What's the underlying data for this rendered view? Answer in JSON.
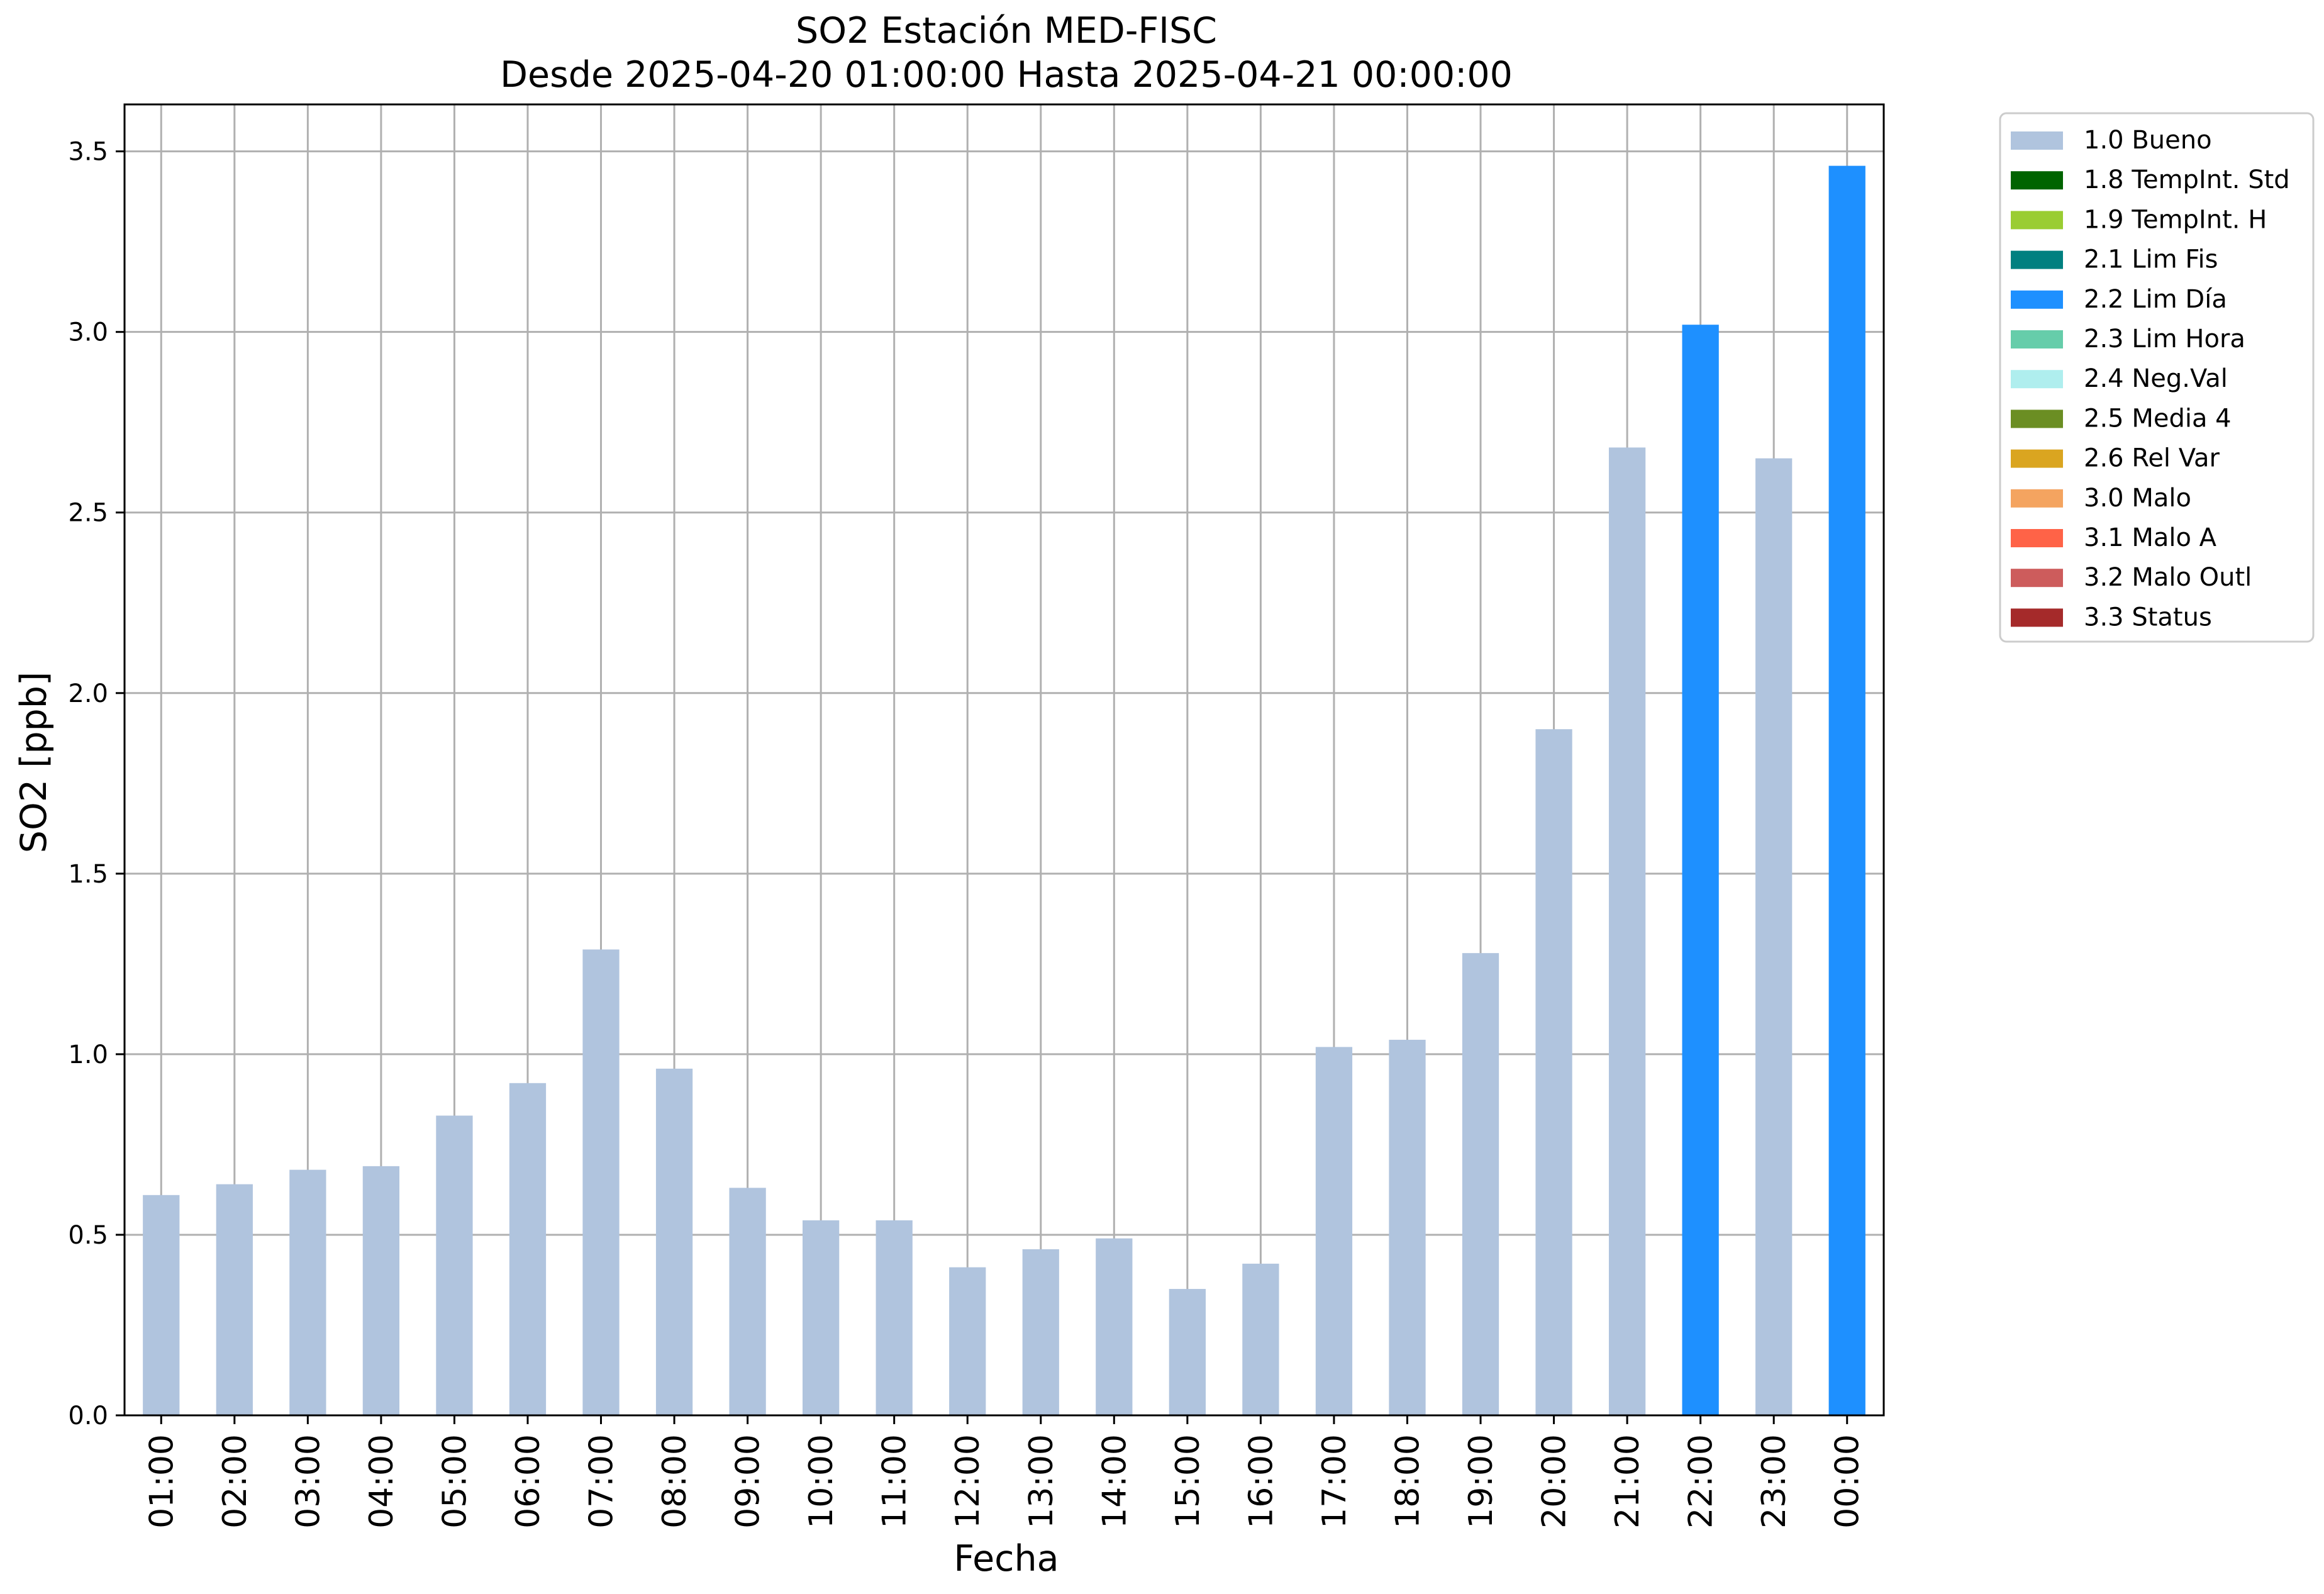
{
  "chart_data": {
    "type": "bar",
    "title": "SO2 Estación MED-FISC",
    "subtitle": "Desde 2025-04-20 01:00:00 Hasta 2025-04-21 00:00:00",
    "xlabel": "Fecha",
    "ylabel": "SO2 [ppb]",
    "ylim": [
      0,
      3.63
    ],
    "yticks": [
      "0.0",
      "0.5",
      "1.0",
      "1.5",
      "2.0",
      "2.5",
      "3.0",
      "3.5"
    ],
    "grid": true,
    "legend_position": "outside-top-right",
    "categories": [
      "01:00",
      "02:00",
      "03:00",
      "04:00",
      "05:00",
      "06:00",
      "07:00",
      "08:00",
      "09:00",
      "10:00",
      "11:00",
      "12:00",
      "13:00",
      "14:00",
      "15:00",
      "16:00",
      "17:00",
      "18:00",
      "19:00",
      "20:00",
      "21:00",
      "22:00",
      "23:00",
      "00:00"
    ],
    "values": [
      0.61,
      0.64,
      0.68,
      0.69,
      0.83,
      0.92,
      1.29,
      0.96,
      0.63,
      0.54,
      0.54,
      0.41,
      0.46,
      0.49,
      0.35,
      0.42,
      1.02,
      1.04,
      1.28,
      1.9,
      2.68,
      3.02,
      2.65,
      3.46
    ],
    "flags": [
      "1.0 Bueno",
      "1.0 Bueno",
      "1.0 Bueno",
      "1.0 Bueno",
      "1.0 Bueno",
      "1.0 Bueno",
      "1.0 Bueno",
      "1.0 Bueno",
      "1.0 Bueno",
      "1.0 Bueno",
      "1.0 Bueno",
      "1.0 Bueno",
      "1.0 Bueno",
      "1.0 Bueno",
      "1.0 Bueno",
      "1.0 Bueno",
      "1.0 Bueno",
      "1.0 Bueno",
      "1.0 Bueno",
      "1.0 Bueno",
      "1.0 Bueno",
      "2.2 Lim Día",
      "1.0 Bueno",
      "2.2 Lim Día"
    ],
    "legend": [
      {
        "label": "1.0 Bueno",
        "color": "#b0c4de"
      },
      {
        "label": "1.8 TempInt. Std",
        "color": "#006400"
      },
      {
        "label": "1.9 TempInt. H",
        "color": "#9acd32"
      },
      {
        "label": "2.1 Lim Fis",
        "color": "#008080"
      },
      {
        "label": "2.2 Lim Día",
        "color": "#1e90ff"
      },
      {
        "label": "2.3 Lim Hora",
        "color": "#66cdaa"
      },
      {
        "label": "2.4 Neg.Val",
        "color": "#afeeee"
      },
      {
        "label": "2.5 Media 4",
        "color": "#6b8e23"
      },
      {
        "label": "2.6 Rel Var",
        "color": "#daa520"
      },
      {
        "label": "3.0 Malo",
        "color": "#f4a460"
      },
      {
        "label": "3.1 Malo A",
        "color": "#ff6347"
      },
      {
        "label": "3.2 Malo Outl",
        "color": "#cd5c5c"
      },
      {
        "label": "3.3 Status",
        "color": "#a52a2a"
      }
    ]
  }
}
